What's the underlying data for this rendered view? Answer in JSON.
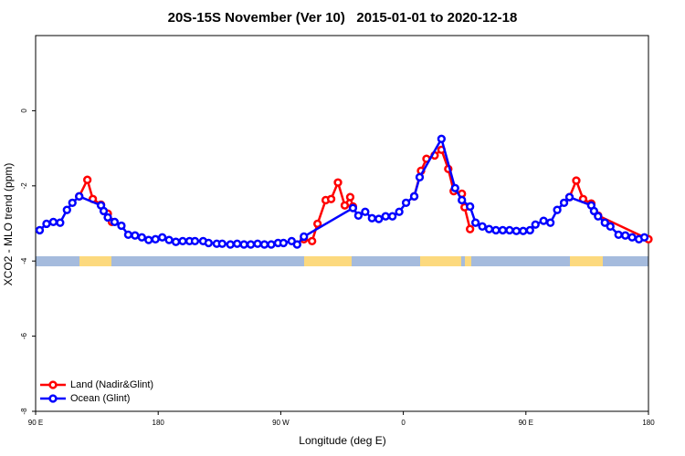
{
  "chart_data": {
    "type": "line",
    "title": "20S-15S November (Ver 10)   2015-01-01 to 2020-12-18",
    "x_label": "Longitude (deg E)",
    "y_label": "XCO2 - MLO trend (ppm)",
    "xlim": [
      90,
      540
    ],
    "xticks": [
      {
        "value": 90,
        "label": "90 E"
      },
      {
        "value": 180,
        "label": "180"
      },
      {
        "value": 270,
        "label": "90 W"
      },
      {
        "value": 360,
        "label": "0"
      },
      {
        "value": 450,
        "label": "90 E"
      },
      {
        "value": 540,
        "label": "180"
      }
    ],
    "ylim": [
      -8,
      2
    ],
    "yticks": [
      0,
      -2,
      -4,
      -6,
      -8
    ],
    "legend": "bottom-left",
    "series": [
      {
        "name": "Land (Nadir&Glint)",
        "color": "#ff0000",
        "x": [
          122,
          128,
          132,
          138,
          143,
          146,
          215,
          287,
          293,
          297,
          303,
          307,
          312,
          317,
          321,
          323,
          345,
          368,
          373,
          377,
          383,
          388,
          393,
          397,
          403,
          405,
          409,
          445,
          482,
          487,
          492,
          498,
          503,
          540
        ],
        "values": [
          -2.28,
          -1.84,
          -2.35,
          -2.5,
          -2.74,
          -2.96,
          null,
          -3.42,
          -3.47,
          -3.01,
          -2.38,
          -2.35,
          -1.91,
          -2.52,
          -2.3,
          -2.55,
          null,
          -2.28,
          -1.6,
          -1.28,
          -1.19,
          -1.04,
          -1.55,
          -2.14,
          -2.21,
          -2.57,
          -3.15,
          null,
          -2.3,
          -1.86,
          -2.35,
          -2.47,
          -2.79,
          -3.42
        ]
      },
      {
        "name": "Ocean (Glint)",
        "color": "#0000ff",
        "x": [
          93,
          98,
          103,
          108,
          113,
          117,
          122,
          138,
          140,
          143,
          148,
          153,
          158,
          163,
          168,
          173,
          178,
          183,
          188,
          193,
          198,
          203,
          207,
          213,
          217,
          223,
          227,
          233,
          238,
          243,
          248,
          253,
          258,
          263,
          268,
          272,
          278,
          282,
          287,
          323,
          327,
          332,
          337,
          342,
          347,
          352,
          357,
          362,
          368,
          372,
          388,
          398,
          403,
          409,
          413,
          418,
          423,
          428,
          433,
          438,
          443,
          448,
          453,
          457,
          463,
          468,
          473,
          478,
          482,
          498,
          500,
          503,
          508,
          512,
          518,
          523,
          528,
          533,
          537
        ],
        "values": [
          -3.18,
          -3.01,
          -2.96,
          -2.98,
          -2.64,
          -2.45,
          -2.28,
          -2.52,
          -2.67,
          -2.84,
          -2.96,
          -3.06,
          -3.3,
          -3.32,
          -3.37,
          -3.44,
          -3.42,
          -3.37,
          -3.44,
          -3.49,
          -3.47,
          -3.47,
          -3.47,
          -3.47,
          -3.52,
          -3.54,
          -3.54,
          -3.56,
          -3.54,
          -3.56,
          -3.56,
          -3.54,
          -3.56,
          -3.56,
          -3.52,
          -3.52,
          -3.47,
          -3.56,
          -3.35,
          -2.59,
          -2.79,
          -2.69,
          -2.86,
          -2.88,
          -2.81,
          -2.81,
          -2.69,
          -2.45,
          -2.28,
          -1.77,
          -0.75,
          -2.06,
          -2.38,
          -2.55,
          -2.98,
          -3.08,
          -3.15,
          -3.18,
          -3.18,
          -3.18,
          -3.2,
          -3.2,
          -3.18,
          -3.03,
          -2.93,
          -2.98,
          -2.64,
          -2.45,
          -2.3,
          -2.52,
          -2.67,
          -2.81,
          -2.98,
          -3.08,
          -3.3,
          -3.32,
          -3.37,
          -3.42,
          -3.37
        ]
      }
    ]
  }
}
